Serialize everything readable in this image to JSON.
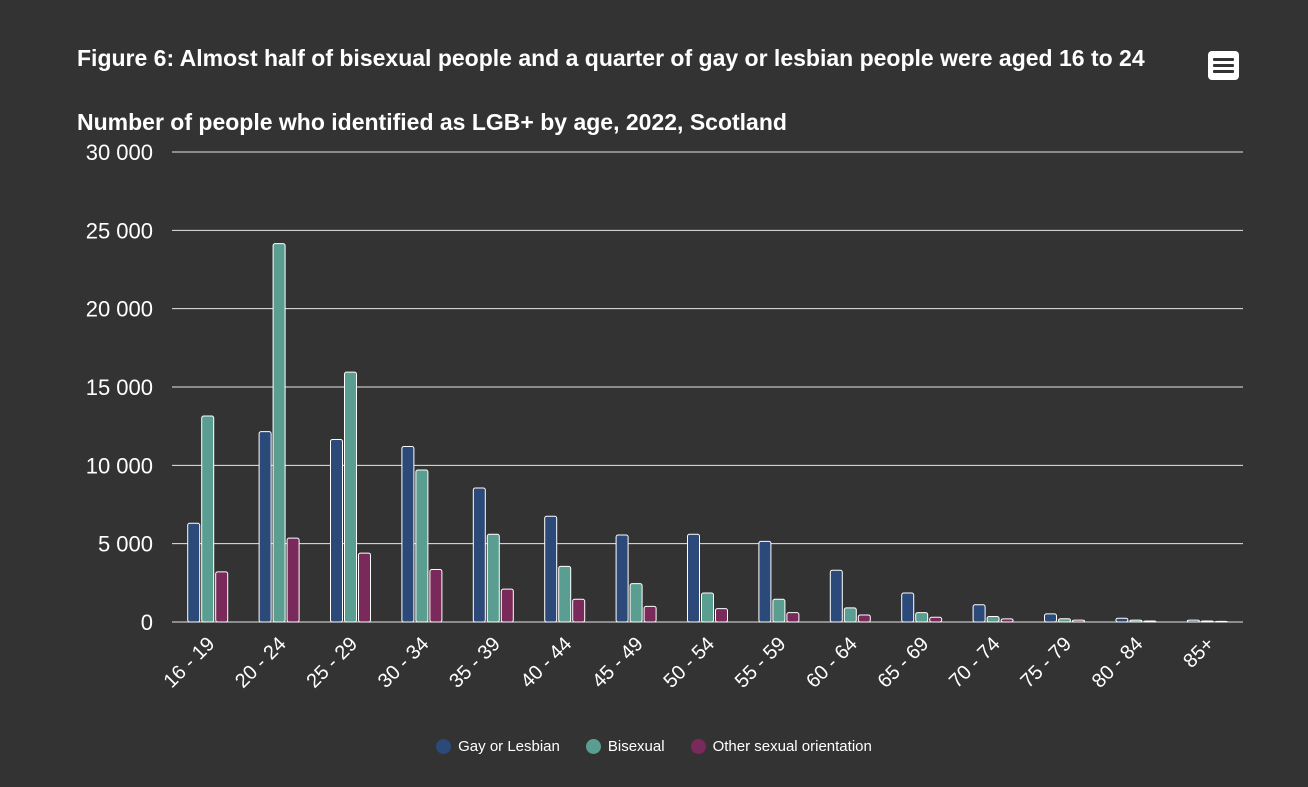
{
  "chart_data": {
    "type": "bar",
    "title": "Figure 6: Almost half of bisexual people and a quarter of gay or lesbian people were aged 16 to 24",
    "subtitle": "Number of people who identified as LGB+ by age, 2022, Scotland",
    "xlabel": "",
    "ylabel": "",
    "ylim": [
      0,
      30000
    ],
    "yticks": [
      0,
      5000,
      10000,
      15000,
      20000,
      25000,
      30000
    ],
    "ytick_labels": [
      "0",
      "5 000",
      "10 000",
      "15 000",
      "20 000",
      "25 000",
      "30 000"
    ],
    "categories": [
      "16 - 19",
      "20 - 24",
      "25 - 29",
      "30 - 34",
      "35 - 39",
      "40 - 44",
      "45 - 49",
      "50 - 54",
      "55 - 59",
      "60 - 64",
      "65 - 69",
      "70 - 74",
      "75 - 79",
      "80 - 84",
      "85+"
    ],
    "series": [
      {
        "name": "Gay or Lesbian",
        "color": "#2b4a7a",
        "values": [
          6300,
          12150,
          11650,
          11200,
          8550,
          6750,
          5550,
          5600,
          5150,
          3300,
          1850,
          1100,
          520,
          240,
          120
        ]
      },
      {
        "name": "Bisexual",
        "color": "#5a9e92",
        "values": [
          13150,
          24150,
          15950,
          9700,
          5600,
          3550,
          2450,
          1850,
          1450,
          900,
          600,
          350,
          210,
          120,
          60
        ]
      },
      {
        "name": "Other sexual orientation",
        "color": "#7a2a5a",
        "values": [
          3200,
          5350,
          4400,
          3350,
          2100,
          1450,
          1000,
          850,
          600,
          450,
          300,
          200,
          120,
          60,
          40
        ]
      }
    ],
    "grid": true,
    "legend_position": "bottom-center"
  },
  "ui": {
    "menu_icon": "hamburger-menu-icon"
  }
}
